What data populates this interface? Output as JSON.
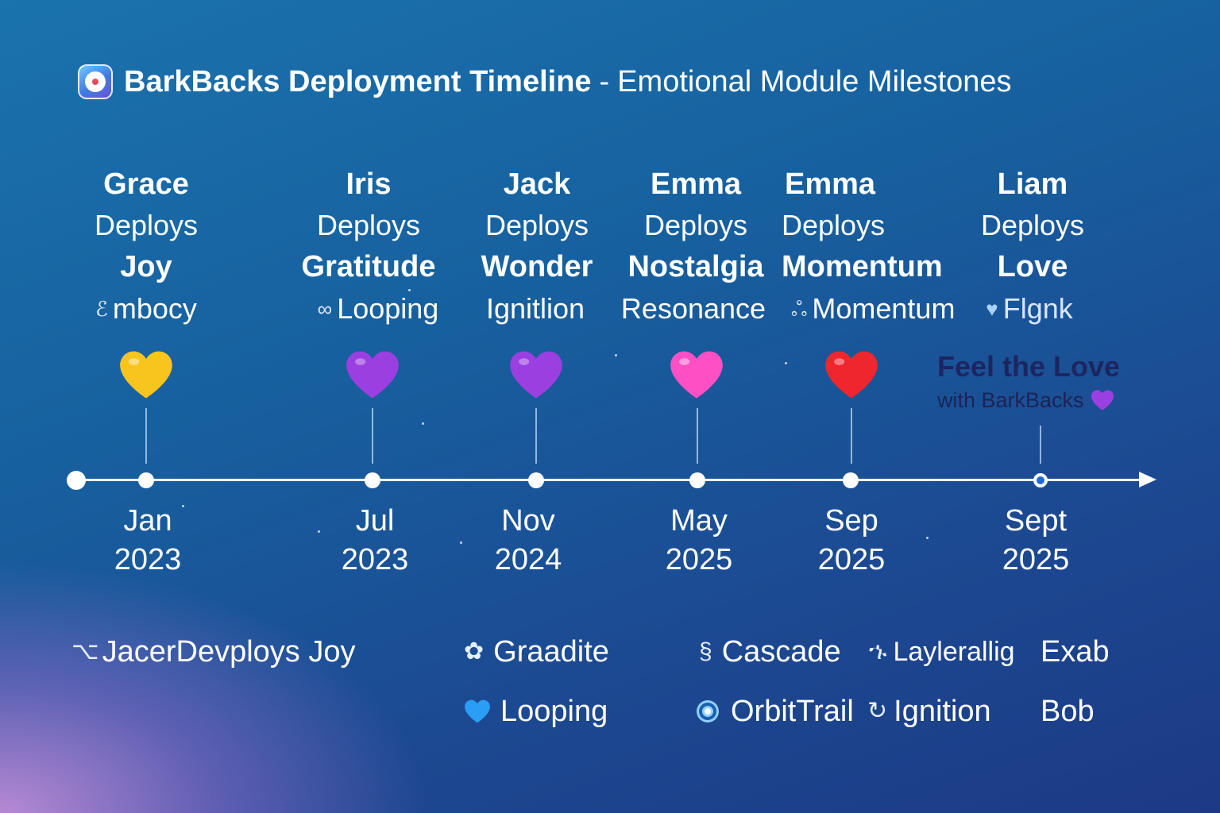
{
  "title": {
    "bold": "BarkBacks Deployment Timeline",
    "separator": "-",
    "light": "Emotional Module Milestones"
  },
  "milestones": [
    {
      "name": "Grace",
      "verb": "Deploys",
      "module": "Joy",
      "sub": "mbocy",
      "sub_glyph": "ℰ",
      "heart_color": "#f7c51e",
      "month": "Jan",
      "year": "2023"
    },
    {
      "name": "Iris",
      "verb": "Deploys",
      "module": "Gratitude",
      "sub": "Looping",
      "sub_glyph": "∞",
      "heart_color": "#9b3fe0",
      "month": "Jul",
      "year": "2023"
    },
    {
      "name": "Jack",
      "verb": "Deploys",
      "module": "Wonder",
      "sub": "Ignitlion",
      "sub_glyph": "",
      "heart_color": "#9b3fe0",
      "month": "Nov",
      "year": "2024"
    },
    {
      "name": "Emma",
      "verb": "Deploys",
      "module": "Nostalgia",
      "sub": "Resonance",
      "sub_glyph": "",
      "heart_color": "#ff4fc4",
      "month": "May",
      "year": "2025"
    },
    {
      "name": "Emma",
      "verb": "Deploys",
      "module": "Momentum",
      "sub": "Momentum",
      "sub_glyph": "ஃ",
      "heart_color": "#f0262e",
      "month": "Sep",
      "year": "2025"
    },
    {
      "name": "Liam",
      "verb": "Deploys",
      "module": "Love",
      "sub": "Flgnk",
      "sub_glyph": "♥",
      "heart_color": "",
      "month": "Sept",
      "year": "2025"
    }
  ],
  "promo": {
    "headline": "Feel the Love",
    "subline": "with BarkBacks",
    "heart_color": "#9b3fe0"
  },
  "legend": {
    "line1": "JacerDevploys Joy",
    "line1_glyph": "⌥",
    "graadite": "Graadite",
    "graadite_glyph": "✿",
    "looping": "Looping",
    "looping_icon": "blue-heart-icon",
    "looping_color": "#2a9df4",
    "cascade": "Cascade",
    "cascade_glyph": "§",
    "orbittrail": "OrbitTrail",
    "orbittrail_icon": "orbit-icon",
    "laylerallig": "Laylerallig",
    "laylerallig_glyph": "ኁ",
    "ignition": "Ignition",
    "ignition_glyph": "↻",
    "exab": "Exab",
    "bob": "Bob"
  },
  "colors": {
    "background_top": "#1a73ad",
    "background_bottom": "#1d3985",
    "glow": "#be8cd7",
    "promo_text": "#1d2560"
  }
}
